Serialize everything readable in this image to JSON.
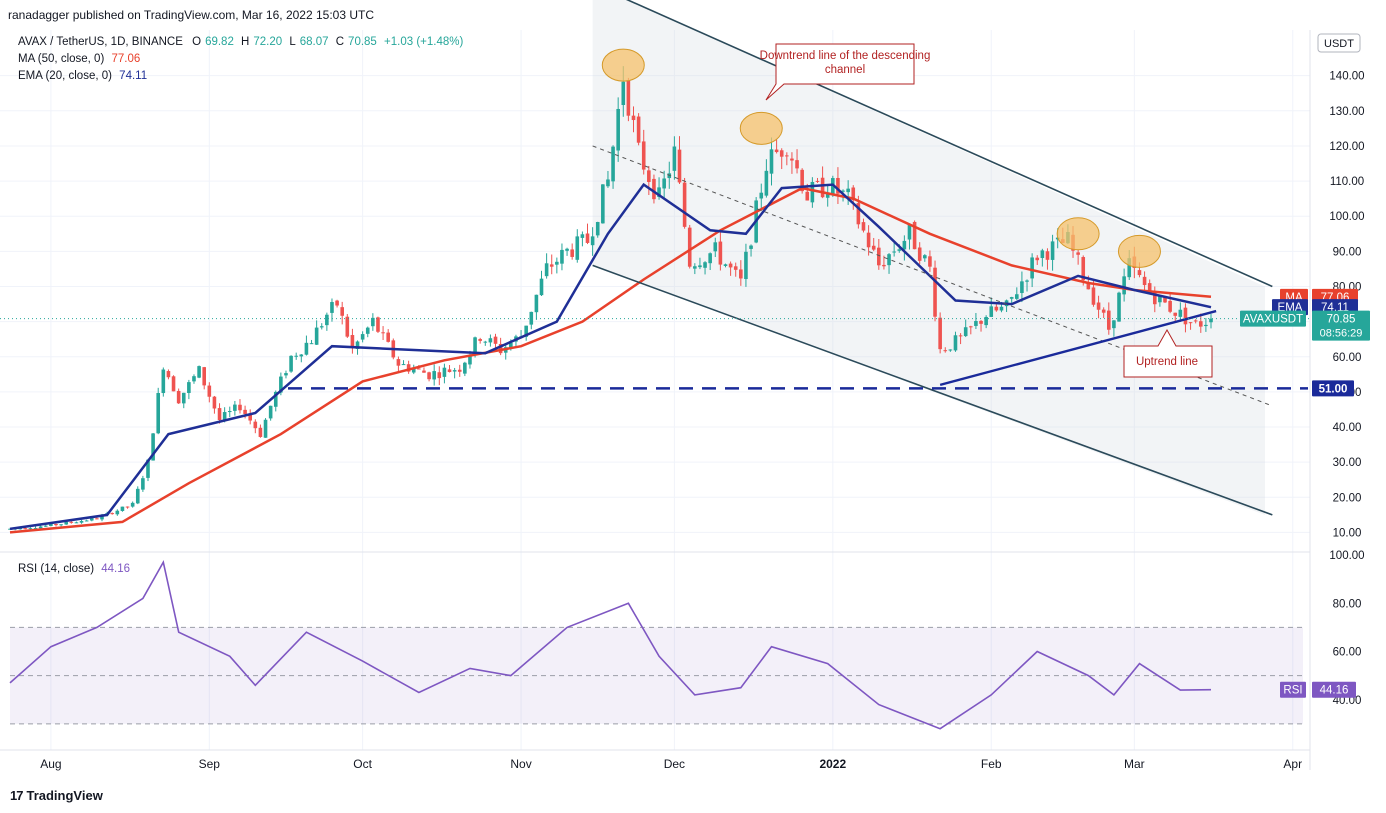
{
  "header": {
    "publisher_line": "ranadagger published on TradingView.com, Mar 16, 2022 15:03 UTC"
  },
  "legend": {
    "symbol": "AVAX / TetherUS, 1D, BINANCE",
    "ohlc": {
      "O": "69.82",
      "H": "72.20",
      "L": "68.07",
      "C": "70.85",
      "change": "+1.03 (+1.48%)"
    },
    "ma_label": "MA (50, close, 0)",
    "ma_value": "77.06",
    "ema_label": "EMA (20, close, 0)",
    "ema_value": "74.11",
    "rsi_label": "RSI (14, close)",
    "rsi_value": "44.16"
  },
  "colors": {
    "up": "#26a69a",
    "down": "#ef5350",
    "ma": "#e8412c",
    "ema": "#1f2f96",
    "rsi": "#7e57c2",
    "channel": "#2b4a5a",
    "support": "#1a2a9a",
    "callout_border": "#b22222",
    "marker_fill": "#f5c26b",
    "marker_stroke": "#d59a2a"
  },
  "price_axis": {
    "currency": "USDT",
    "ticks": [
      "140.00",
      "130.00",
      "120.00",
      "110.00",
      "100.00",
      "90.00",
      "80.00",
      "70.00",
      "60.00",
      "50.00",
      "40.00",
      "30.00",
      "20.00",
      "10.00"
    ],
    "labels": {
      "ma": {
        "tag": "MA",
        "value": "77.06"
      },
      "ema": {
        "tag": "EMA",
        "value": "74.11"
      },
      "last": {
        "symbol": "AVAXUSDT",
        "value": "70.85",
        "countdown": "08:56:29"
      },
      "support": "51.00"
    }
  },
  "rsi_axis": {
    "ticks": [
      "100.00",
      "80.00",
      "60.00",
      "40.00"
    ],
    "tag": "RSI",
    "value": "44.16"
  },
  "time_axis": {
    "labels": [
      "Aug",
      "Sep",
      "Oct",
      "Nov",
      "Dec",
      "2022",
      "Feb",
      "Mar",
      "Apr"
    ]
  },
  "annotations": {
    "downtrend_callout": "Downtrend line of the descending channel",
    "uptrend_callout": "Uptrend line"
  },
  "branding": {
    "logo_text": "TradingView"
  },
  "chart_data": {
    "type": "candlestick",
    "title": "AVAX / TetherUS, 1D, BINANCE",
    "x_range": [
      "2021-07-24",
      "2022-04-03"
    ],
    "y_range": [
      5,
      153
    ],
    "support_level": 51.0,
    "anchors": [
      {
        "d": "2021-07-24",
        "v": 11
      },
      {
        "d": "2021-08-01",
        "v": 12
      },
      {
        "d": "2021-08-10",
        "v": 14
      },
      {
        "d": "2021-08-17",
        "v": 18
      },
      {
        "d": "2021-08-20",
        "v": 30
      },
      {
        "d": "2021-08-23",
        "v": 58
      },
      {
        "d": "2021-08-26",
        "v": 48
      },
      {
        "d": "2021-08-30",
        "v": 56
      },
      {
        "d": "2021-09-03",
        "v": 42
      },
      {
        "d": "2021-09-07",
        "v": 46
      },
      {
        "d": "2021-09-11",
        "v": 38
      },
      {
        "d": "2021-09-13",
        "v": 46
      },
      {
        "d": "2021-09-17",
        "v": 60
      },
      {
        "d": "2021-09-21",
        "v": 65
      },
      {
        "d": "2021-09-24",
        "v": 72
      },
      {
        "d": "2021-09-26",
        "v": 75
      },
      {
        "d": "2021-09-29",
        "v": 62
      },
      {
        "d": "2021-10-03",
        "v": 70
      },
      {
        "d": "2021-10-08",
        "v": 58
      },
      {
        "d": "2021-10-14",
        "v": 55
      },
      {
        "d": "2021-10-20",
        "v": 57
      },
      {
        "d": "2021-10-24",
        "v": 66
      },
      {
        "d": "2021-10-28",
        "v": 62
      },
      {
        "d": "2021-11-01",
        "v": 66
      },
      {
        "d": "2021-11-06",
        "v": 85
      },
      {
        "d": "2021-11-10",
        "v": 90
      },
      {
        "d": "2021-11-14",
        "v": 93
      },
      {
        "d": "2021-11-18",
        "v": 110
      },
      {
        "d": "2021-11-21",
        "v": 140
      },
      {
        "d": "2021-11-24",
        "v": 118
      },
      {
        "d": "2021-11-28",
        "v": 105
      },
      {
        "d": "2021-12-01",
        "v": 118
      },
      {
        "d": "2021-12-04",
        "v": 87
      },
      {
        "d": "2021-12-09",
        "v": 90
      },
      {
        "d": "2021-12-14",
        "v": 81
      },
      {
        "d": "2021-12-19",
        "v": 115
      },
      {
        "d": "2021-12-23",
        "v": 121
      },
      {
        "d": "2021-12-27",
        "v": 106
      },
      {
        "d": "2021-12-31",
        "v": 109
      },
      {
        "d": "2022-01-04",
        "v": 105
      },
      {
        "d": "2022-01-10",
        "v": 86
      },
      {
        "d": "2022-01-16",
        "v": 95
      },
      {
        "d": "2022-01-20",
        "v": 85
      },
      {
        "d": "2022-01-22",
        "v": 62
      },
      {
        "d": "2022-01-26",
        "v": 65
      },
      {
        "d": "2022-01-31",
        "v": 72
      },
      {
        "d": "2022-02-04",
        "v": 74
      },
      {
        "d": "2022-02-10",
        "v": 89
      },
      {
        "d": "2022-02-16",
        "v": 93
      },
      {
        "d": "2022-02-20",
        "v": 80
      },
      {
        "d": "2022-02-24",
        "v": 68
      },
      {
        "d": "2022-02-28",
        "v": 86
      },
      {
        "d": "2022-03-03",
        "v": 80
      },
      {
        "d": "2022-03-06",
        "v": 76
      },
      {
        "d": "2022-03-10",
        "v": 72
      },
      {
        "d": "2022-03-13",
        "v": 69
      },
      {
        "d": "2022-03-16",
        "v": 70.85
      }
    ],
    "ma50": [
      {
        "d": "2021-07-24",
        "v": 10
      },
      {
        "d": "2021-08-15",
        "v": 13
      },
      {
        "d": "2021-08-28",
        "v": 24
      },
      {
        "d": "2021-09-15",
        "v": 38
      },
      {
        "d": "2021-10-01",
        "v": 53
      },
      {
        "d": "2021-10-17",
        "v": 59
      },
      {
        "d": "2021-11-01",
        "v": 63
      },
      {
        "d": "2021-11-13",
        "v": 70
      },
      {
        "d": "2021-11-25",
        "v": 82
      },
      {
        "d": "2021-12-10",
        "v": 96
      },
      {
        "d": "2021-12-26",
        "v": 108
      },
      {
        "d": "2022-01-05",
        "v": 105
      },
      {
        "d": "2022-01-20",
        "v": 95
      },
      {
        "d": "2022-02-05",
        "v": 86
      },
      {
        "d": "2022-02-20",
        "v": 81
      },
      {
        "d": "2022-03-01",
        "v": 79
      },
      {
        "d": "2022-03-16",
        "v": 77.06
      }
    ],
    "ema20": [
      {
        "d": "2021-07-24",
        "v": 11
      },
      {
        "d": "2021-08-12",
        "v": 15
      },
      {
        "d": "2021-08-24",
        "v": 38
      },
      {
        "d": "2021-09-10",
        "v": 44
      },
      {
        "d": "2021-09-25",
        "v": 63
      },
      {
        "d": "2021-10-10",
        "v": 62
      },
      {
        "d": "2021-10-25",
        "v": 61
      },
      {
        "d": "2021-11-08",
        "v": 70
      },
      {
        "d": "2021-11-18",
        "v": 95
      },
      {
        "d": "2021-11-25",
        "v": 109
      },
      {
        "d": "2021-12-08",
        "v": 96
      },
      {
        "d": "2021-12-15",
        "v": 95
      },
      {
        "d": "2021-12-22",
        "v": 108
      },
      {
        "d": "2022-01-01",
        "v": 109
      },
      {
        "d": "2022-01-10",
        "v": 97
      },
      {
        "d": "2022-01-25",
        "v": 76
      },
      {
        "d": "2022-02-05",
        "v": 75
      },
      {
        "d": "2022-02-18",
        "v": 83
      },
      {
        "d": "2022-03-01",
        "v": 79
      },
      {
        "d": "2022-03-16",
        "v": 74.11
      }
    ],
    "rsi": [
      {
        "d": "2021-07-24",
        "v": 47
      },
      {
        "d": "2021-08-01",
        "v": 62
      },
      {
        "d": "2021-08-10",
        "v": 70
      },
      {
        "d": "2021-08-19",
        "v": 82
      },
      {
        "d": "2021-08-23",
        "v": 97
      },
      {
        "d": "2021-08-26",
        "v": 68
      },
      {
        "d": "2021-09-05",
        "v": 58
      },
      {
        "d": "2021-09-10",
        "v": 46
      },
      {
        "d": "2021-09-20",
        "v": 68
      },
      {
        "d": "2021-10-01",
        "v": 56
      },
      {
        "d": "2021-10-12",
        "v": 43
      },
      {
        "d": "2021-10-22",
        "v": 53
      },
      {
        "d": "2021-10-30",
        "v": 50
      },
      {
        "d": "2021-11-10",
        "v": 70
      },
      {
        "d": "2021-11-22",
        "v": 80
      },
      {
        "d": "2021-11-28",
        "v": 58
      },
      {
        "d": "2021-12-05",
        "v": 42
      },
      {
        "d": "2021-12-14",
        "v": 45
      },
      {
        "d": "2021-12-20",
        "v": 62
      },
      {
        "d": "2021-12-31",
        "v": 55
      },
      {
        "d": "2022-01-10",
        "v": 38
      },
      {
        "d": "2022-01-22",
        "v": 28
      },
      {
        "d": "2022-02-01",
        "v": 42
      },
      {
        "d": "2022-02-10",
        "v": 60
      },
      {
        "d": "2022-02-20",
        "v": 50
      },
      {
        "d": "2022-02-25",
        "v": 42
      },
      {
        "d": "2022-03-02",
        "v": 55
      },
      {
        "d": "2022-03-10",
        "v": 44
      },
      {
        "d": "2022-03-16",
        "v": 44.16
      }
    ],
    "rsi_range": [
      20,
      100
    ],
    "rsi_bands": [
      30,
      50,
      70
    ],
    "channel": {
      "upper": [
        {
          "d": "2021-11-15",
          "v": 166
        },
        {
          "d": "2022-03-28",
          "v": 80
        }
      ],
      "lower": [
        {
          "d": "2021-11-15",
          "v": 86
        },
        {
          "d": "2022-03-28",
          "v": 15
        }
      ],
      "mid": [
        {
          "d": "2021-11-15",
          "v": 120
        },
        {
          "d": "2022-03-28",
          "v": 46
        }
      ]
    },
    "uptrend_line": [
      {
        "d": "2022-01-22",
        "v": 52
      },
      {
        "d": "2022-03-17",
        "v": 73
      }
    ],
    "peak_markers": [
      {
        "d": "2021-11-21",
        "v": 143
      },
      {
        "d": "2021-12-18",
        "v": 125
      },
      {
        "d": "2022-02-18",
        "v": 95
      },
      {
        "d": "2022-03-02",
        "v": 90
      }
    ]
  }
}
